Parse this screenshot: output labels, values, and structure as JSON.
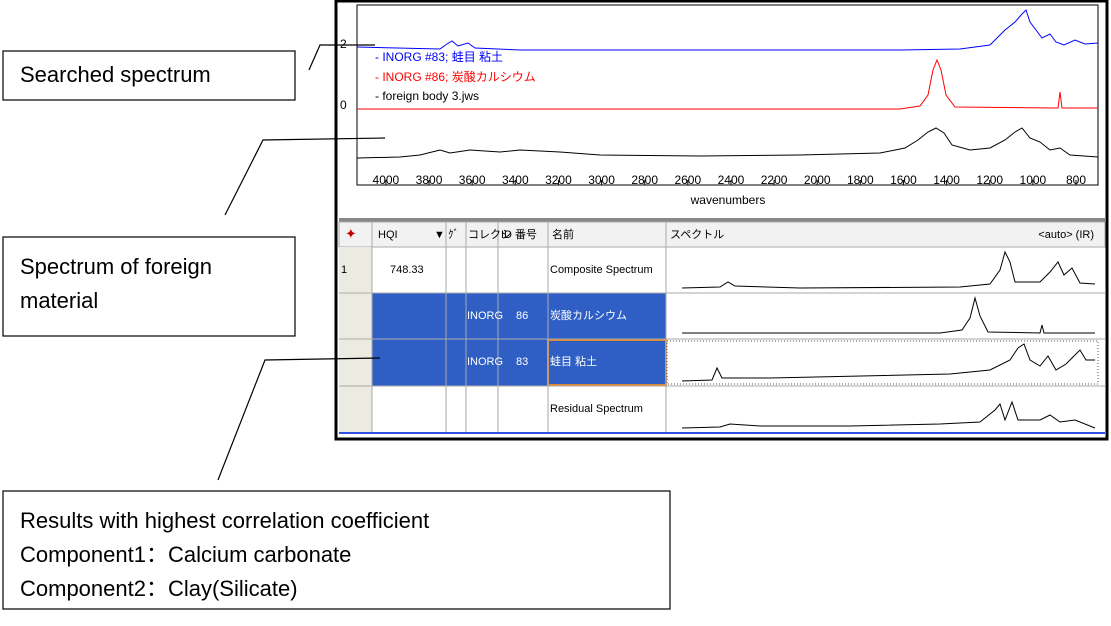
{
  "callouts": {
    "searched": "Searched spectrum",
    "foreign": [
      "Spectrum of foreign",
      "material"
    ],
    "results": [
      "Results with highest correlation coefficient",
      "Component1：Calcium carbonate",
      "Component2：Clay(Silicate)"
    ]
  },
  "plot": {
    "legend": [
      "- INORG #83; 蛙目  粘土",
      "- INORG #86; 炭酸カルシウム",
      "- foreign body 3.jws"
    ],
    "yticks": [
      2,
      0
    ],
    "xlim": [
      4134,
      698
    ],
    "xticks": [
      4000,
      3800,
      3600,
      3400,
      3200,
      3000,
      2800,
      2600,
      2400,
      2200,
      2000,
      1800,
      1600,
      1400,
      1200,
      1000,
      800
    ],
    "xlabel": "wavenumbers"
  },
  "table": {
    "headers": [
      "HQI",
      "ｸﾞ",
      "コレクシ",
      "ID 番号",
      "名前",
      "スペクトル",
      "<auto> (IR)"
    ],
    "rows": [
      {
        "index": "1",
        "hqi": "748.33",
        "name": "Composite Spectrum"
      },
      {
        "collection": "INORG",
        "id": "86",
        "name": "炭酸カルシウム"
      },
      {
        "collection": "INORG",
        "id": "83",
        "name": "蛙目  粘土"
      },
      {
        "name": "Residual Spectrum"
      }
    ]
  }
}
